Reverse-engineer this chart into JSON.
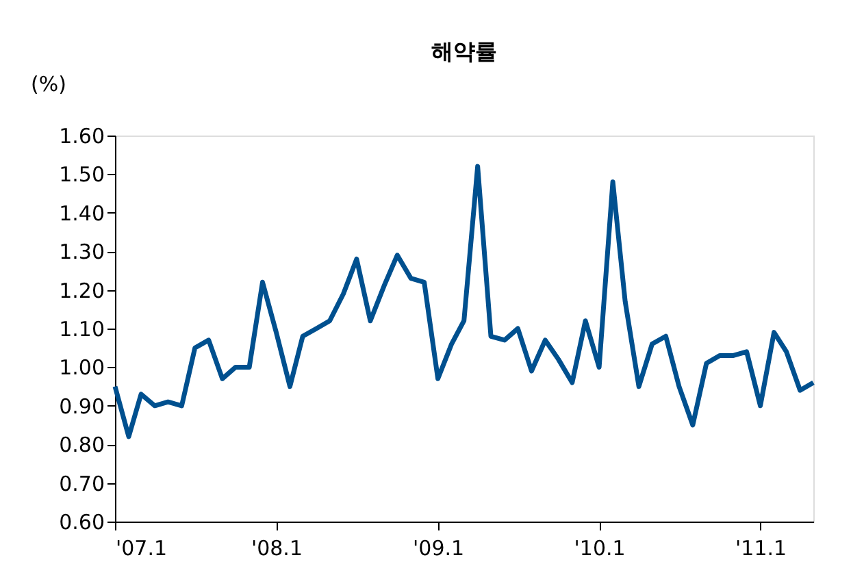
{
  "chart_data": {
    "type": "line",
    "title": "해약률",
    "ylabel": "(%)",
    "x": [
      "2007-01",
      "2007-02",
      "2007-03",
      "2007-04",
      "2007-05",
      "2007-06",
      "2007-07",
      "2007-08",
      "2007-09",
      "2007-10",
      "2007-11",
      "2007-12",
      "2008-01",
      "2008-02",
      "2008-03",
      "2008-04",
      "2008-05",
      "2008-06",
      "2008-07",
      "2008-08",
      "2008-09",
      "2008-10",
      "2008-11",
      "2008-12",
      "2009-01",
      "2009-02",
      "2009-03",
      "2009-04",
      "2009-05",
      "2009-06",
      "2009-07",
      "2009-08",
      "2009-09",
      "2009-10",
      "2009-11",
      "2009-12",
      "2010-01",
      "2010-02",
      "2010-03",
      "2010-04",
      "2010-05",
      "2010-06",
      "2010-07",
      "2010-08",
      "2010-09",
      "2010-10",
      "2010-11",
      "2010-12",
      "2011-01",
      "2011-02",
      "2011-03",
      "2011-04",
      "2011-05"
    ],
    "series": [
      {
        "color": "#00508f",
        "values": [
          0.95,
          0.82,
          0.93,
          0.9,
          0.91,
          0.9,
          1.05,
          1.07,
          0.97,
          1.0,
          1.0,
          1.22,
          1.09,
          0.95,
          1.08,
          1.1,
          1.12,
          1.19,
          1.28,
          1.12,
          1.21,
          1.29,
          1.23,
          1.22,
          0.97,
          1.06,
          1.12,
          1.52,
          1.08,
          1.07,
          1.1,
          0.99,
          1.07,
          1.02,
          0.96,
          1.12,
          1.0,
          1.48,
          1.17,
          0.95,
          1.06,
          1.08,
          0.95,
          0.85,
          1.01,
          1.03,
          1.03,
          1.04,
          0.9,
          1.09,
          1.04,
          0.94,
          0.96
        ]
      }
    ],
    "xlim": [
      "2007-01",
      "2011-05"
    ],
    "xticks": [
      {
        "value": "2007-01",
        "label": "'07.1"
      },
      {
        "value": "2008-01",
        "label": "'08.1"
      },
      {
        "value": "2009-01",
        "label": "'09.1"
      },
      {
        "value": "2010-01",
        "label": "'10.1"
      },
      {
        "value": "2011-01",
        "label": "'11.1"
      }
    ],
    "ylim": [
      0.6,
      1.6
    ],
    "yticks": [
      {
        "value": 0.6,
        "label": "0.60"
      },
      {
        "value": 0.7,
        "label": "0.70"
      },
      {
        "value": 0.8,
        "label": "0.80"
      },
      {
        "value": 0.9,
        "label": "0.90"
      },
      {
        "value": 1.0,
        "label": "1.00"
      },
      {
        "value": 1.1,
        "label": "1.10"
      },
      {
        "value": 1.2,
        "label": "1.20"
      },
      {
        "value": 1.3,
        "label": "1.30"
      },
      {
        "value": 1.4,
        "label": "1.40"
      },
      {
        "value": 1.5,
        "label": "1.50"
      },
      {
        "value": 1.6,
        "label": "1.60"
      }
    ],
    "grid": false,
    "marker": "none",
    "line_style": "solid"
  }
}
